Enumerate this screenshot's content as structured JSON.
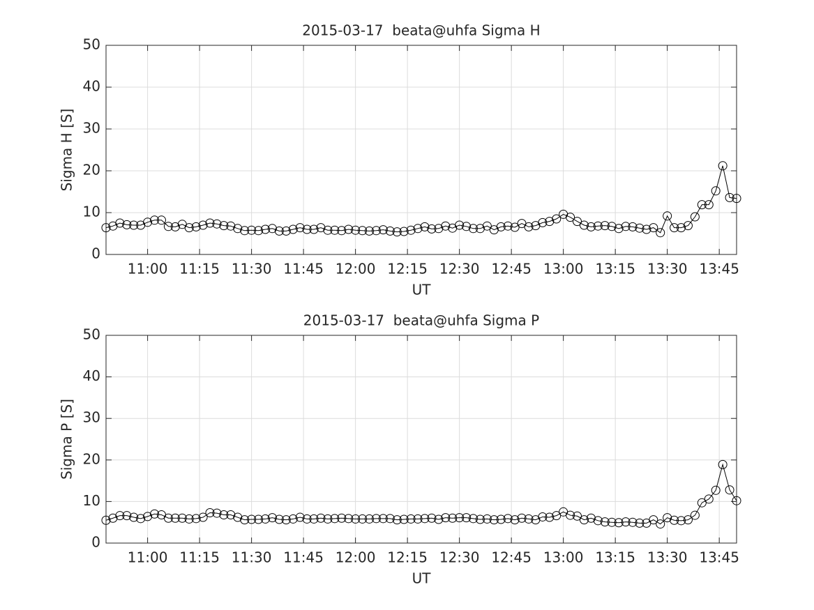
{
  "chart_data": [
    {
      "type": "line",
      "title": "2015-03-17  beata@uhfa Sigma H",
      "xlabel": "UT",
      "ylabel": "Sigma H [S]",
      "x": [
        "10:48",
        "10:50",
        "10:52",
        "10:54",
        "10:56",
        "10:58",
        "11:00",
        "11:02",
        "11:04",
        "11:06",
        "11:08",
        "11:10",
        "11:12",
        "11:14",
        "11:16",
        "11:18",
        "11:20",
        "11:22",
        "11:24",
        "11:26",
        "11:28",
        "11:30",
        "11:32",
        "11:34",
        "11:36",
        "11:38",
        "11:40",
        "11:42",
        "11:44",
        "11:46",
        "11:48",
        "11:50",
        "11:52",
        "11:54",
        "11:56",
        "11:58",
        "12:00",
        "12:02",
        "12:04",
        "12:06",
        "12:08",
        "12:10",
        "12:12",
        "12:14",
        "12:16",
        "12:18",
        "12:20",
        "12:22",
        "12:24",
        "12:26",
        "12:28",
        "12:30",
        "12:32",
        "12:34",
        "12:36",
        "12:38",
        "12:40",
        "12:42",
        "12:44",
        "12:46",
        "12:48",
        "12:50",
        "12:52",
        "12:54",
        "12:56",
        "12:58",
        "13:00",
        "13:02",
        "13:04",
        "13:06",
        "13:08",
        "13:10",
        "13:12",
        "13:14",
        "13:16",
        "13:18",
        "13:20",
        "13:22",
        "13:24",
        "13:26",
        "13:28",
        "13:30",
        "13:32",
        "13:34",
        "13:36",
        "13:38",
        "13:40",
        "13:42",
        "13:44",
        "13:46",
        "13:48",
        "13:50"
      ],
      "values": [
        6.4,
        6.8,
        7.5,
        7.1,
        7.0,
        7.0,
        7.7,
        8.2,
        8.2,
        6.7,
        6.6,
        7.2,
        6.4,
        6.6,
        7.0,
        7.5,
        7.3,
        6.9,
        6.8,
        6.2,
        5.7,
        5.8,
        5.7,
        6.0,
        6.2,
        5.6,
        5.6,
        6.0,
        6.4,
        6.0,
        6.0,
        6.4,
        5.8,
        5.8,
        5.7,
        6.0,
        5.8,
        5.7,
        5.6,
        5.7,
        5.9,
        5.6,
        5.4,
        5.5,
        5.8,
        6.2,
        6.6,
        6.1,
        6.2,
        6.8,
        6.3,
        7.0,
        6.7,
        6.2,
        6.2,
        6.8,
        5.9,
        6.6,
        6.8,
        6.5,
        7.4,
        6.6,
        6.9,
        7.6,
        7.9,
        8.5,
        9.6,
        8.9,
        7.9,
        7.0,
        6.6,
        6.8,
        6.9,
        6.7,
        6.2,
        6.7,
        6.6,
        6.3,
        6.0,
        6.4,
        5.2,
        9.2,
        6.4,
        6.4,
        6.9,
        9.0,
        11.9,
        11.9,
        15.2,
        21.2,
        13.6,
        13.4
      ],
      "color": "#000000",
      "xlim": [
        "10:48",
        "13:50"
      ],
      "xticks": [
        "11:00",
        "11:15",
        "11:30",
        "11:45",
        "12:00",
        "12:15",
        "12:30",
        "12:45",
        "13:00",
        "13:15",
        "13:30",
        "13:45"
      ],
      "ylim": [
        0,
        50
      ],
      "yticks": [
        0,
        10,
        20,
        30,
        40,
        50
      ],
      "grid": true
    },
    {
      "type": "line",
      "title": "2015-03-17  beata@uhfa Sigma P",
      "xlabel": "UT",
      "ylabel": "Sigma P [S]",
      "x": [
        "10:48",
        "10:50",
        "10:52",
        "10:54",
        "10:56",
        "10:58",
        "11:00",
        "11:02",
        "11:04",
        "11:06",
        "11:08",
        "11:10",
        "11:12",
        "11:14",
        "11:16",
        "11:18",
        "11:20",
        "11:22",
        "11:24",
        "11:26",
        "11:28",
        "11:30",
        "11:32",
        "11:34",
        "11:36",
        "11:38",
        "11:40",
        "11:42",
        "11:44",
        "11:46",
        "11:48",
        "11:50",
        "11:52",
        "11:54",
        "11:56",
        "11:58",
        "12:00",
        "12:02",
        "12:04",
        "12:06",
        "12:08",
        "12:10",
        "12:12",
        "12:14",
        "12:16",
        "12:18",
        "12:20",
        "12:22",
        "12:24",
        "12:26",
        "12:28",
        "12:30",
        "12:32",
        "12:34",
        "12:36",
        "12:38",
        "12:40",
        "12:42",
        "12:44",
        "12:46",
        "12:48",
        "12:50",
        "12:52",
        "12:54",
        "12:56",
        "12:58",
        "13:00",
        "13:02",
        "13:04",
        "13:06",
        "13:08",
        "13:10",
        "13:12",
        "13:14",
        "13:16",
        "13:18",
        "13:20",
        "13:22",
        "13:24",
        "13:26",
        "13:28",
        "13:30",
        "13:32",
        "13:34",
        "13:36",
        "13:38",
        "13:40",
        "13:42",
        "13:44",
        "13:46",
        "13:48",
        "13:50"
      ],
      "values": [
        5.5,
        6.0,
        6.6,
        6.6,
        6.2,
        5.9,
        6.4,
        7.0,
        6.8,
        6.0,
        6.0,
        6.0,
        5.8,
        5.9,
        6.2,
        7.3,
        7.2,
        6.8,
        6.8,
        6.2,
        5.6,
        5.7,
        5.7,
        5.8,
        6.1,
        5.7,
        5.6,
        5.8,
        6.2,
        5.8,
        5.8,
        6.0,
        5.8,
        5.9,
        6.0,
        5.9,
        5.8,
        5.8,
        5.8,
        5.9,
        5.9,
        5.9,
        5.6,
        5.7,
        5.8,
        5.8,
        5.9,
        6.0,
        5.7,
        6.1,
        6.0,
        6.1,
        6.1,
        5.9,
        5.7,
        5.8,
        5.6,
        5.7,
        5.9,
        5.6,
        6.0,
        5.8,
        5.6,
        6.3,
        6.2,
        6.6,
        7.5,
        6.7,
        6.5,
        5.6,
        6.0,
        5.4,
        5.1,
        5.0,
        4.9,
        5.1,
        5.0,
        4.8,
        4.8,
        5.6,
        4.6,
        6.1,
        5.5,
        5.4,
        5.6,
        6.7,
        9.7,
        10.6,
        12.7,
        18.9,
        12.8,
        10.2
      ],
      "color": "#000000",
      "xlim": [
        "10:48",
        "13:50"
      ],
      "xticks": [
        "11:00",
        "11:15",
        "11:30",
        "11:45",
        "12:00",
        "12:15",
        "12:30",
        "12:45",
        "13:00",
        "13:15",
        "13:30",
        "13:45"
      ],
      "ylim": [
        0,
        50
      ],
      "yticks": [
        0,
        10,
        20,
        30,
        40,
        50
      ],
      "grid": true
    }
  ]
}
